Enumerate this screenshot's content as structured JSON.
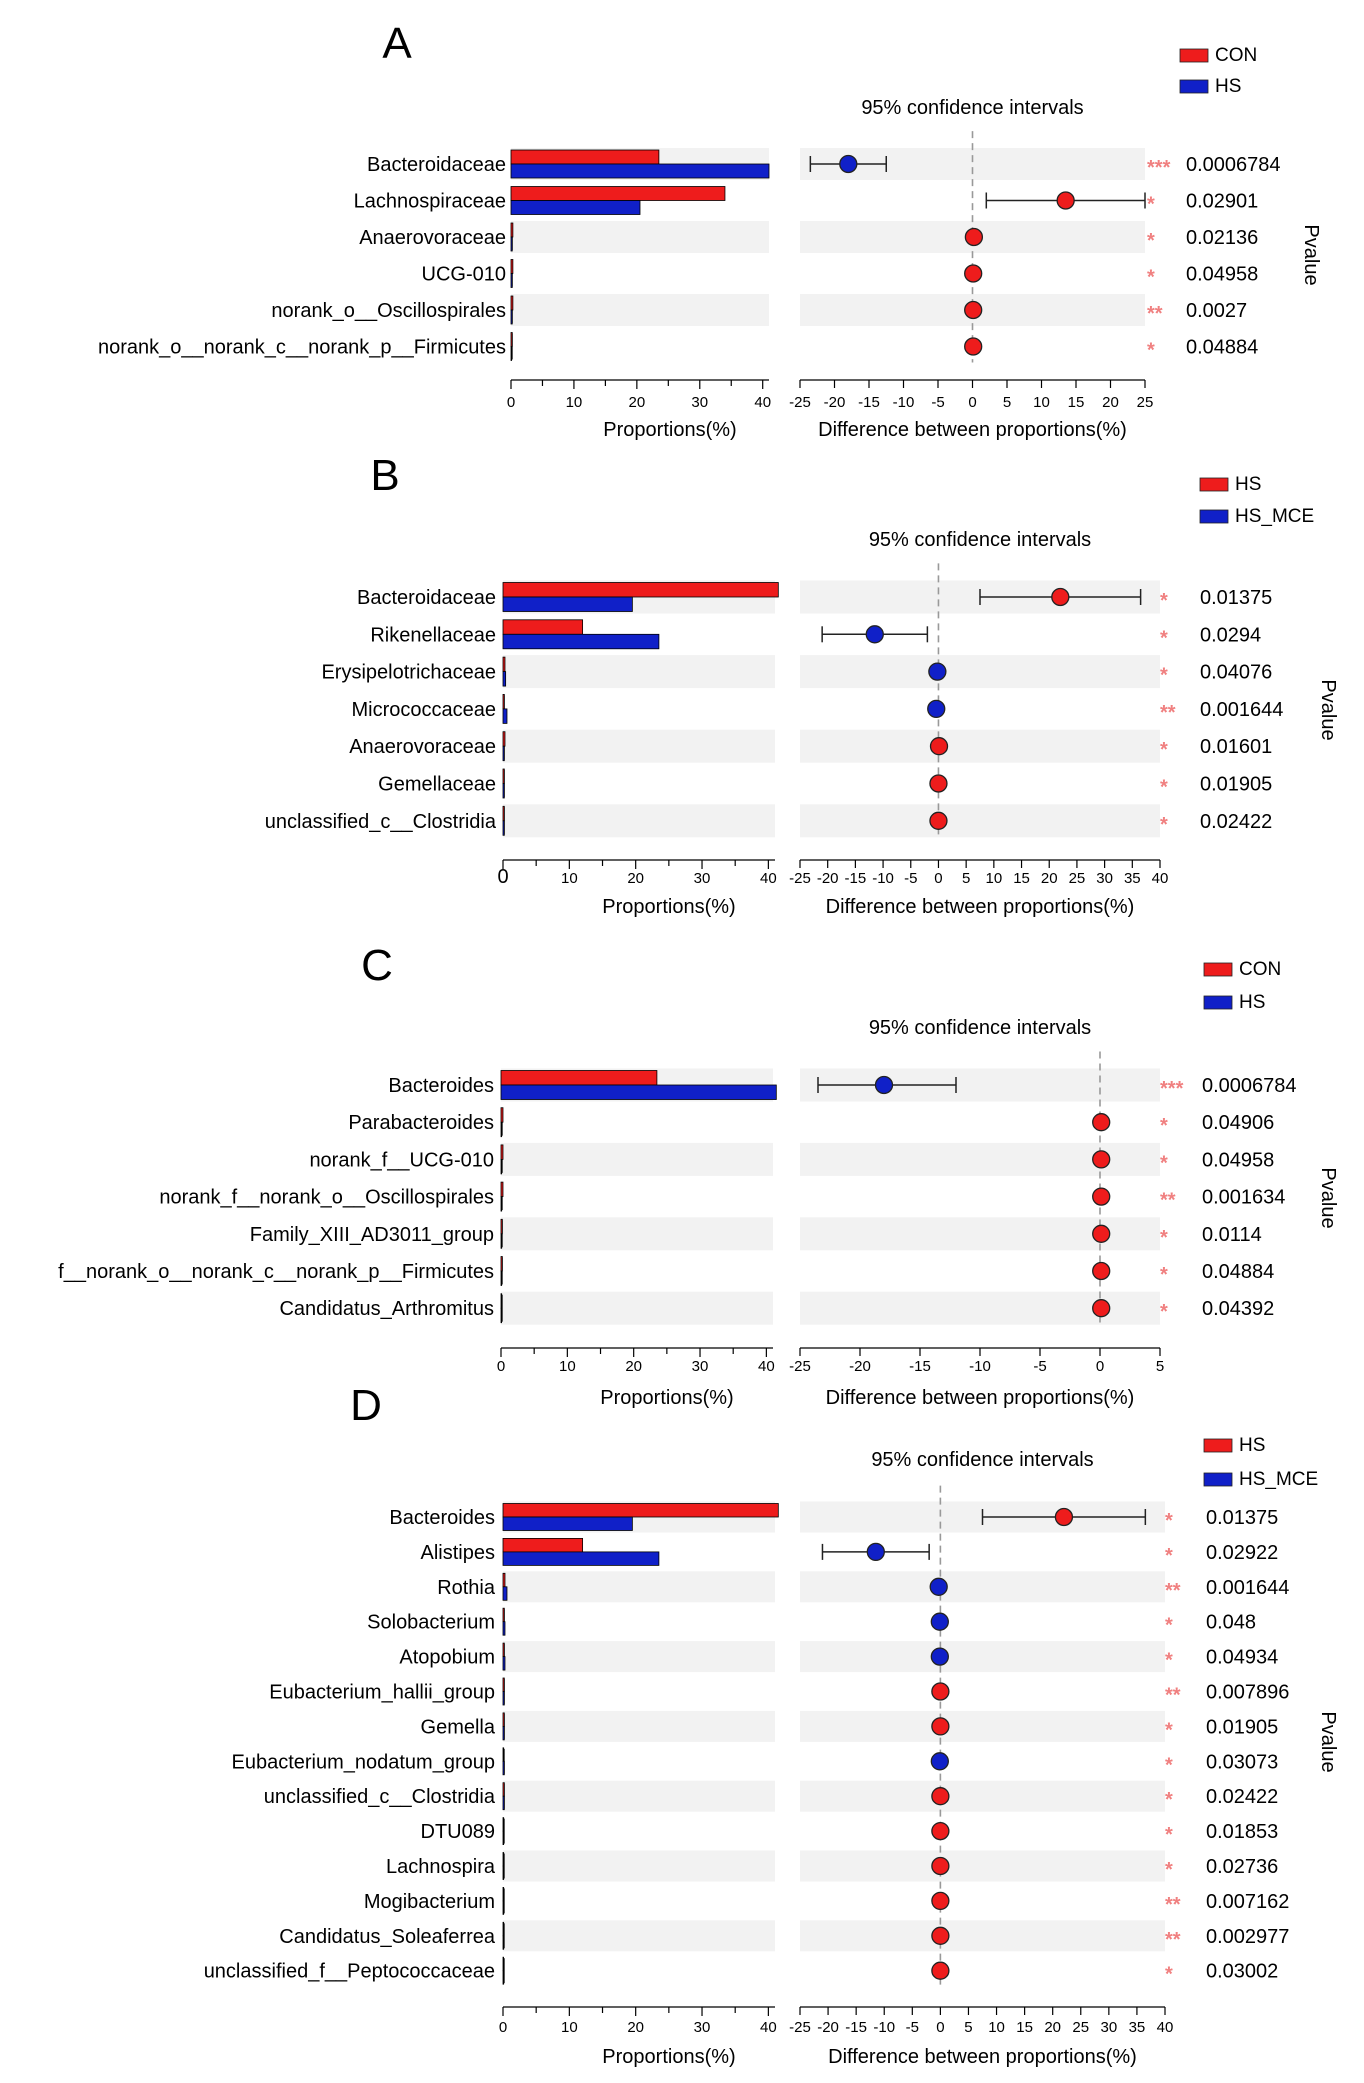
{
  "figure": {
    "ci_title": "95% confidence intervals",
    "pvalue_label": "Pvalue",
    "colors": {
      "group1": "#ee1c1c",
      "group2": "#1020c8",
      "band": "#f2f2f2",
      "star": "#f08080"
    }
  },
  "chart_data": [
    {
      "panel": "A",
      "type": "bar",
      "groups": [
        "CON",
        "HS"
      ],
      "categories": [
        "Bacteroidaceae",
        "Lachnospiraceae",
        "Anaerovoraceae",
        "UCG-010",
        "norank_o__Oscillospirales",
        "norank_o__norank_c__norank_p__Firmicutes"
      ],
      "series": [
        {
          "name": "CON",
          "values": [
            23.5,
            34.0,
            0.3,
            0.3,
            0.3,
            0.2
          ]
        },
        {
          "name": "HS",
          "values": [
            41.0,
            20.5,
            0.2,
            0.2,
            0.2,
            0.1
          ]
        }
      ],
      "xlabel": "Proportions(%)",
      "xlim": [
        0,
        41
      ],
      "xticks": [
        0,
        10,
        20,
        30,
        40
      ],
      "diff": {
        "xlabel": "Difference between proportions(%)",
        "xlim": [
          -25,
          25
        ],
        "xticks": [
          -25,
          -20,
          -15,
          -10,
          -5,
          0,
          5,
          10,
          15,
          20,
          25
        ],
        "estimates": [
          -18,
          13.5,
          0.2,
          0.1,
          0.1,
          0.1
        ],
        "lower": [
          -23.5,
          2,
          null,
          null,
          null,
          null
        ],
        "upper": [
          -12.5,
          25,
          null,
          null,
          null,
          null
        ]
      },
      "stars": [
        "***",
        "*",
        "*",
        "*",
        "**",
        "*"
      ],
      "pvalues": [
        "0.0006784",
        "0.02901",
        "0.02136",
        "0.04958",
        "0.0027",
        "0.04884"
      ]
    },
    {
      "panel": "B",
      "type": "bar",
      "groups": [
        "HS",
        "HS_MCE"
      ],
      "categories": [
        "Bacteroidaceae",
        "Rikenellaceae",
        "Erysipelotrichaceae",
        "Micrococcaceae",
        "Anaerovoraceae",
        "Gemellaceae",
        "unclassified_c__Clostridia"
      ],
      "series": [
        {
          "name": "HS",
          "values": [
            41.5,
            12.0,
            0.3,
            0.2,
            0.3,
            0.2,
            0.2
          ]
        },
        {
          "name": "HS_MCE",
          "values": [
            19.5,
            23.5,
            0.4,
            0.6,
            0.2,
            0.2,
            0.2
          ]
        }
      ],
      "xlabel": "Proportions(%)",
      "xlim": [
        0,
        41
      ],
      "xticks": [
        0,
        10,
        20,
        30,
        40
      ],
      "diff": {
        "xlabel": "Difference between proportions(%)",
        "xlim": [
          -25,
          40
        ],
        "xticks": [
          -25,
          -20,
          -15,
          -10,
          -5,
          0,
          5,
          10,
          15,
          20,
          25,
          30,
          35,
          40
        ],
        "estimates": [
          22,
          -11.5,
          -0.2,
          -0.4,
          0.1,
          0,
          0
        ],
        "lower": [
          7.5,
          -21,
          null,
          null,
          null,
          null,
          null
        ],
        "upper": [
          36.5,
          -2,
          null,
          null,
          null,
          null,
          null
        ]
      },
      "stars": [
        "*",
        "*",
        "*",
        "**",
        "*",
        "*",
        "*"
      ],
      "pvalues": [
        "0.01375",
        "0.0294",
        "0.04076",
        "0.001644",
        "0.01601",
        "0.01905",
        "0.02422"
      ]
    },
    {
      "panel": "C",
      "type": "bar",
      "groups": [
        "CON",
        "HS"
      ],
      "categories": [
        "Bacteroides",
        "Parabacteroides",
        "norank_f__UCG-010",
        "norank_f__norank_o__Oscillospirales",
        "Family_XIII_AD3011_group",
        "f__norank_o__norank_c__norank_p__Firmicutes",
        "Candidatus_Arthromitus"
      ],
      "series": [
        {
          "name": "CON",
          "values": [
            23.5,
            0.3,
            0.3,
            0.3,
            0.2,
            0.2,
            0.1
          ]
        },
        {
          "name": "HS",
          "values": [
            41.5,
            0.1,
            0.1,
            0.1,
            0.1,
            0.1,
            0.0
          ]
        }
      ],
      "xlabel": "Proportions(%)",
      "xlim": [
        0,
        41
      ],
      "xticks": [
        0,
        10,
        20,
        30,
        40
      ],
      "diff": {
        "xlabel": "Difference between proportions(%)",
        "xlim": [
          -25,
          5
        ],
        "xticks": [
          -25,
          -20,
          -15,
          -10,
          -5,
          0,
          5
        ],
        "estimates": [
          -18,
          0.1,
          0.1,
          0.1,
          0.1,
          0.1,
          0.1
        ],
        "lower": [
          -23.5,
          null,
          null,
          null,
          null,
          null,
          null
        ],
        "upper": [
          -12,
          null,
          null,
          null,
          null,
          null,
          null
        ]
      },
      "stars": [
        "***",
        "*",
        "*",
        "**",
        "*",
        "*",
        "*"
      ],
      "pvalues": [
        "0.0006784",
        "0.04906",
        "0.04958",
        "0.001634",
        "0.0114",
        "0.04884",
        "0.04392"
      ]
    },
    {
      "panel": "D",
      "type": "bar",
      "groups": [
        "HS",
        "HS_MCE"
      ],
      "categories": [
        "Bacteroides",
        "Alistipes",
        "Rothia",
        "Solobacterium",
        "Atopobium",
        "Eubacterium_hallii_group",
        "Gemella",
        "Eubacterium_nodatum_group",
        "unclassified_c__Clostridia",
        "DTU089",
        "Lachnospira",
        "Mogibacterium",
        "Candidatus_Soleaferrea",
        "unclassified_f__Peptococcaceae"
      ],
      "series": [
        {
          "name": "HS",
          "values": [
            41.5,
            12.0,
            0.3,
            0.2,
            0.2,
            0.2,
            0.2,
            0.1,
            0.2,
            0.1,
            0.1,
            0.1,
            0.1,
            0.0
          ]
        },
        {
          "name": "HS_MCE",
          "values": [
            19.5,
            23.5,
            0.6,
            0.3,
            0.3,
            0.2,
            0.2,
            0.2,
            0.2,
            0.1,
            0.1,
            0.1,
            0.1,
            0.1
          ]
        }
      ],
      "xlabel": "Proportions(%)",
      "xlim": [
        0,
        41
      ],
      "xticks": [
        0,
        10,
        20,
        30,
        40
      ],
      "diff": {
        "xlabel": "Difference between proportions(%)",
        "xlim": [
          -25,
          40
        ],
        "xticks": [
          -25,
          -20,
          -15,
          -10,
          -5,
          0,
          5,
          10,
          15,
          20,
          25,
          30,
          35,
          40
        ],
        "estimates": [
          22,
          -11.5,
          -0.3,
          -0.1,
          -0.1,
          0,
          0,
          -0.1,
          0,
          0,
          0,
          0,
          0,
          0
        ],
        "lower": [
          7.5,
          -21,
          null,
          null,
          null,
          null,
          null,
          null,
          null,
          null,
          null,
          null,
          null,
          null
        ],
        "upper": [
          36.5,
          -2,
          null,
          null,
          null,
          null,
          null,
          null,
          null,
          null,
          null,
          null,
          null,
          null
        ]
      },
      "stars": [
        "*",
        "*",
        "**",
        "*",
        "*",
        "**",
        "*",
        "*",
        "*",
        "*",
        "*",
        "**",
        "**",
        "*"
      ],
      "pvalues": [
        "0.01375",
        "0.02922",
        "0.001644",
        "0.048",
        "0.04934",
        "0.007896",
        "0.01905",
        "0.03073",
        "0.02422",
        "0.01853",
        "0.02736",
        "0.007162",
        "0.002977",
        "0.03002"
      ]
    }
  ]
}
